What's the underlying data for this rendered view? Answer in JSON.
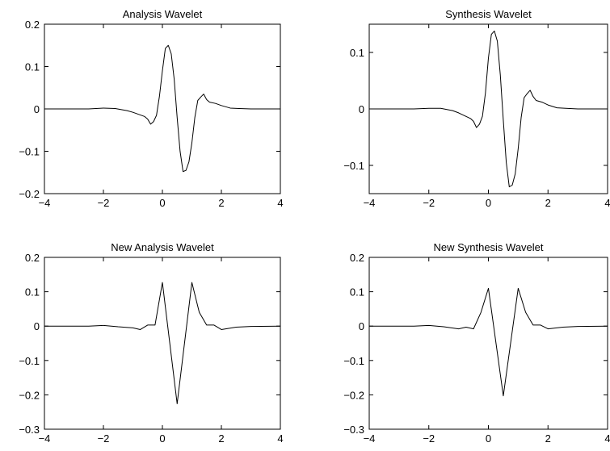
{
  "chart_data": [
    {
      "type": "line",
      "title": "Analysis Wavelet",
      "xlim": [
        -4,
        4
      ],
      "ylim": [
        -0.2,
        0.2
      ],
      "xticks": [
        -4,
        -2,
        0,
        2,
        4
      ],
      "yticks": [
        -0.2,
        -0.1,
        0,
        0.1,
        0.2
      ],
      "xtick_labels": [
        "−4",
        "−2",
        "0",
        "2",
        "4"
      ],
      "ytick_labels": [
        "−0.2",
        "−0.1",
        "0",
        "0.1",
        "0.2"
      ],
      "x": [
        -4,
        -2.5,
        -2,
        -1.6,
        -1.2,
        -1.0,
        -0.8,
        -0.6,
        -0.5,
        -0.4,
        -0.3,
        -0.2,
        -0.1,
        0.0,
        0.1,
        0.2,
        0.3,
        0.4,
        0.5,
        0.6,
        0.7,
        0.8,
        0.9,
        1.0,
        1.1,
        1.2,
        1.3,
        1.4,
        1.5,
        1.6,
        1.8,
        2.0,
        2.3,
        2.6,
        3.0,
        4.0
      ],
      "y": [
        0,
        0,
        0.002,
        0.001,
        -0.004,
        -0.008,
        -0.013,
        -0.018,
        -0.024,
        -0.036,
        -0.03,
        -0.015,
        0.03,
        0.09,
        0.143,
        0.15,
        0.13,
        0.07,
        -0.02,
        -0.1,
        -0.148,
        -0.145,
        -0.125,
        -0.08,
        -0.02,
        0.02,
        0.028,
        0.035,
        0.022,
        0.016,
        0.013,
        0.008,
        0.002,
        0.001,
        0,
        0
      ]
    },
    {
      "type": "line",
      "title": "Synthesis Wavelet",
      "xlim": [
        -4,
        4
      ],
      "ylim": [
        -0.15,
        0.15
      ],
      "xticks": [
        -4,
        -2,
        0,
        2,
        4
      ],
      "yticks": [
        -0.1,
        0,
        0.1
      ],
      "xtick_labels": [
        "−4",
        "−2",
        "0",
        "2",
        "4"
      ],
      "ytick_labels": [
        "−0.1",
        "0",
        "0.1"
      ],
      "x": [
        -4,
        -2.5,
        -2,
        -1.6,
        -1.2,
        -1.0,
        -0.8,
        -0.6,
        -0.5,
        -0.4,
        -0.3,
        -0.2,
        -0.1,
        0.0,
        0.1,
        0.2,
        0.3,
        0.4,
        0.5,
        0.6,
        0.7,
        0.8,
        0.9,
        1.0,
        1.1,
        1.2,
        1.3,
        1.4,
        1.5,
        1.6,
        1.8,
        2.0,
        2.3,
        2.6,
        3.0,
        4.0
      ],
      "y": [
        0,
        0,
        0.001,
        0.001,
        -0.003,
        -0.007,
        -0.012,
        -0.017,
        -0.022,
        -0.033,
        -0.027,
        -0.013,
        0.028,
        0.09,
        0.132,
        0.138,
        0.12,
        0.06,
        -0.02,
        -0.095,
        -0.138,
        -0.135,
        -0.115,
        -0.07,
        -0.015,
        0.02,
        0.027,
        0.033,
        0.022,
        0.015,
        0.012,
        0.007,
        0.002,
        0.001,
        0,
        0
      ]
    },
    {
      "type": "line",
      "title": "New Analysis Wavelet",
      "xlim": [
        -4,
        4
      ],
      "ylim": [
        -0.3,
        0.2
      ],
      "xticks": [
        -4,
        -2,
        0,
        2,
        4
      ],
      "yticks": [
        -0.3,
        -0.2,
        -0.1,
        0,
        0.1,
        0.2
      ],
      "xtick_labels": [
        "−4",
        "−2",
        "0",
        "2",
        "4"
      ],
      "ytick_labels": [
        "−0.3",
        "−0.2",
        "−0.1",
        "0",
        "0.1",
        "0.2"
      ],
      "x": [
        -4,
        -3,
        -2.5,
        -2.0,
        -1.5,
        -1.0,
        -0.75,
        -0.5,
        -0.25,
        0.0,
        0.5,
        1.0,
        1.25,
        1.5,
        1.75,
        2.0,
        2.5,
        3.0,
        4.0
      ],
      "y": [
        0,
        0,
        0,
        0.002,
        -0.002,
        -0.005,
        -0.01,
        0.003,
        0.003,
        0.127,
        -0.226,
        0.127,
        0.04,
        0.003,
        0.003,
        -0.01,
        -0.003,
        -0.001,
        0
      ]
    },
    {
      "type": "line",
      "title": "New Synthesis Wavelet",
      "xlim": [
        -4,
        4
      ],
      "ylim": [
        -0.3,
        0.2
      ],
      "xticks": [
        -4,
        -2,
        0,
        2,
        4
      ],
      "yticks": [
        -0.3,
        -0.2,
        -0.1,
        0,
        0.1,
        0.2
      ],
      "xtick_labels": [
        "−4",
        "−2",
        "0",
        "2",
        "4"
      ],
      "ytick_labels": [
        "−0.3",
        "−0.2",
        "−0.1",
        "0",
        "0.1",
        "0.2"
      ],
      "x": [
        -4,
        -3,
        -2.5,
        -2.0,
        -1.5,
        -1.0,
        -0.75,
        -0.5,
        -0.25,
        0.0,
        0.5,
        1.0,
        1.25,
        1.5,
        1.75,
        2.0,
        2.5,
        3.0,
        4.0
      ],
      "y": [
        0,
        0,
        0,
        0.002,
        -0.002,
        -0.008,
        -0.003,
        -0.008,
        0.04,
        0.11,
        -0.203,
        0.11,
        0.04,
        0.003,
        0.003,
        -0.008,
        -0.003,
        -0.001,
        0
      ]
    }
  ]
}
